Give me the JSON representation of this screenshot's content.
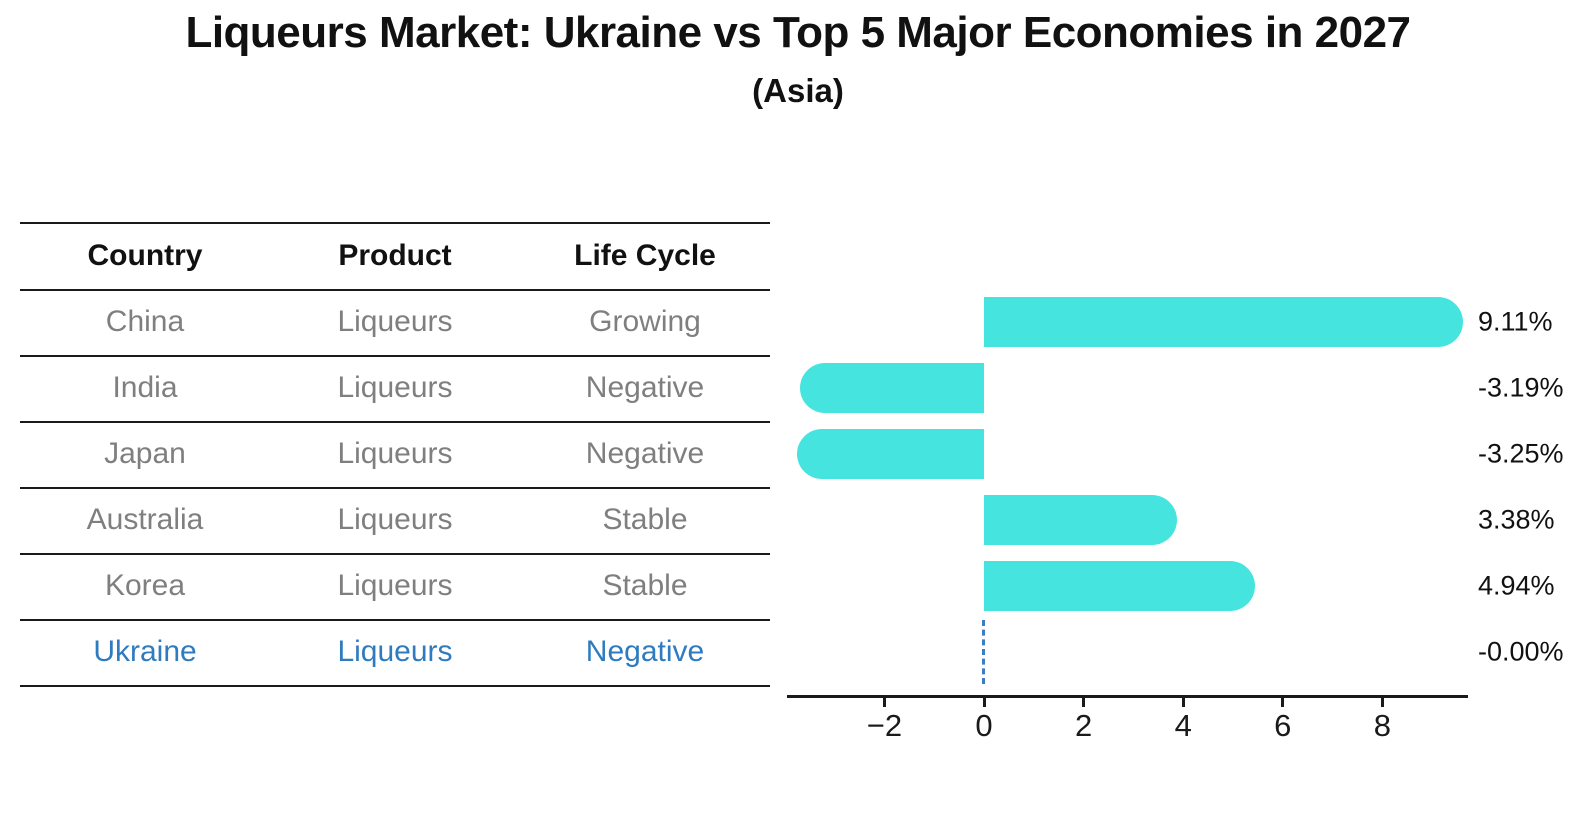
{
  "title": "Liqueurs Market: Ukraine vs Top 5 Major Economies in 2027",
  "subtitle": "(Asia)",
  "table": {
    "headers": [
      "Country",
      "Product",
      "Life Cycle"
    ],
    "rows": [
      {
        "country": "China",
        "product": "Liqueurs",
        "life_cycle": "Growing",
        "highlight": false
      },
      {
        "country": "India",
        "product": "Liqueurs",
        "life_cycle": "Negative",
        "highlight": false
      },
      {
        "country": "Japan",
        "product": "Liqueurs",
        "life_cycle": "Negative",
        "highlight": false
      },
      {
        "country": "Australia",
        "product": "Liqueurs",
        "life_cycle": "Stable",
        "highlight": false
      },
      {
        "country": "Korea",
        "product": "Liqueurs",
        "life_cycle": "Stable",
        "highlight": true,
        "highlight_note": null
      },
      {
        "country": "Ukraine",
        "product": "Liqueurs",
        "life_cycle": "Negative",
        "highlight": true
      }
    ]
  },
  "chart_data": {
    "type": "bar",
    "orientation": "horizontal",
    "title": "Liqueurs Market: Ukraine vs Top 5 Major Economies in 2027 (Asia)",
    "categories": [
      "China",
      "India",
      "Japan",
      "Australia",
      "Korea",
      "Ukraine"
    ],
    "values": [
      9.11,
      -3.19,
      -3.25,
      3.38,
      4.94,
      -0.0
    ],
    "value_labels": [
      "9.11%",
      "-3.19%",
      "-3.25%",
      "3.38%",
      "4.94%",
      "-0.00%"
    ],
    "unit": "percent",
    "xticks": [
      -2,
      0,
      2,
      4,
      6,
      8
    ],
    "xtick_labels": [
      "−2",
      "0",
      "2",
      "4",
      "6",
      "8"
    ],
    "xlim": [
      -3.95,
      9.7
    ],
    "grid": false,
    "legend": false,
    "zero_marker_row": "Ukraine",
    "zero_marker_style": "dashed"
  },
  "colors": {
    "bar": "#46e4df",
    "highlight_text": "#2f7bbf",
    "zero_marker": "#3b7ec4",
    "table_text": "#7f7f7f",
    "heading_text": "#111111",
    "axis": "#1a1a1a"
  }
}
